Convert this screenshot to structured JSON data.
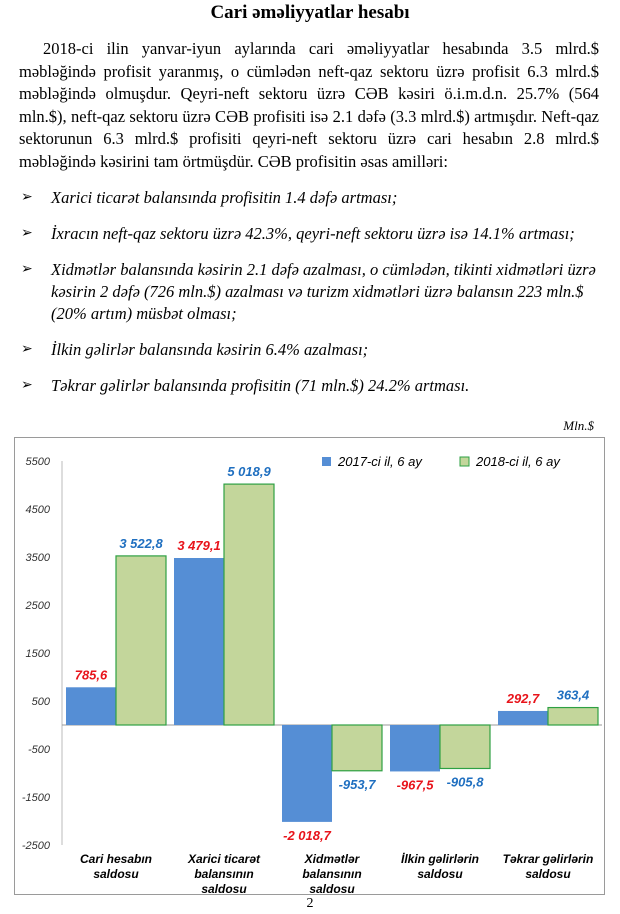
{
  "title": "Cari əməliyyatlar hesabı",
  "paragraph": "2018-ci ilin yanvar-iyun aylarında cari əməliyyatlar hesabında 3.5 mlrd.$ məbləğində profisit yaranmış, o cümlədən neft-qaz sektoru üzrə profisit 6.3 mlrd.$ məbləğində olmuşdur. Qeyri-neft sektoru üzrə CƏB kəsiri ö.i.m.d.n. 25.7% (564 mln.$), neft-qaz sektoru üzrə CƏB profisiti isə 2.1 dəfə (3.3 mlrd.$) artmışdır. Neft-qaz sektorunun 6.3 mlrd.$ profisiti qeyri-neft sektoru üzrə cari hesabın 2.8 mlrd.$ məbləğində kəsirini tam örtmüşdür. CƏB profisitin əsas amilləri:",
  "bullets": [
    "Xarici ticarət balansında profisitin 1.4 dəfə artması;",
    "İxracın neft-qaz sektoru üzrə 42.3%, qeyri-neft sektoru üzrə isə 14.1% artması;",
    "Xidmətlər balansında kəsirin 2.1 dəfə azalması, o cümlədən, tikinti xidmətləri üzrə kəsirin 2 dəfə (726 mln.$) azalması və turizm xidmətləri üzrə balansın 223 mln.$ (20% artım) müsbət olması;",
    "İlkin gəlirlər balansında kəsirin 6.4% azalması;",
    "Təkrar gəlirlər balansında profisitin (71 mln.$) 24.2% artması."
  ],
  "bullet_icon": "arrow-bullet-icon",
  "unit": "Mln.$",
  "page_number": "2",
  "chart_data": {
    "type": "bar",
    "categories": [
      [
        "Cari hesabın",
        "saldosu"
      ],
      [
        "Xarici ticarət",
        "balansının",
        "saldosu"
      ],
      [
        "Xidmətlər",
        "balansının",
        "saldosu"
      ],
      [
        "İlkin gəlirlərin",
        "saldosu"
      ],
      [
        "Təkrar gəlirlərin",
        "saldosu"
      ]
    ],
    "series": [
      {
        "name": "2017-ci il, 6 ay",
        "values": [
          785.6,
          3479.1,
          -2018.7,
          -967.5,
          292.7
        ],
        "labels": [
          "785,6",
          "3 479,1",
          "-2 018,7",
          "-967,5",
          "292,7"
        ],
        "color": "#558ed5",
        "label_color": "#e8141b"
      },
      {
        "name": "2018-ci il, 6 ay",
        "values": [
          3522.8,
          5018.9,
          -953.7,
          -905.8,
          363.4
        ],
        "labels": [
          "3 522,8",
          "5 018,9",
          "-953,7",
          "-905,8",
          "363,4"
        ],
        "color": "#c3d69b",
        "border": "#2ea043",
        "label_color": "#1f6fc0"
      }
    ],
    "yticks": [
      5500,
      4500,
      3500,
      2500,
      1500,
      500,
      -500,
      -1500,
      -2500
    ],
    "ylim": [
      -2500,
      5500
    ],
    "grid": false,
    "legend": "top-right"
  }
}
